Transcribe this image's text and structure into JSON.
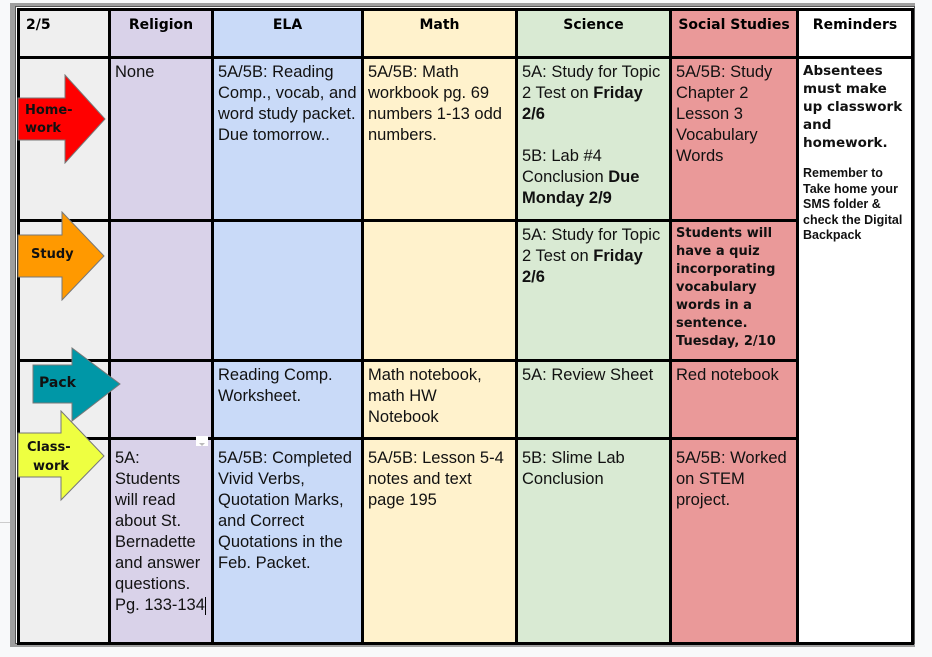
{
  "header": {
    "date": "2/5",
    "religion": "Religion",
    "ela": "ELA",
    "math": "Math",
    "science": "Science",
    "social_studies": "Social Studies",
    "reminders": "Reminders"
  },
  "rows": {
    "homework": {
      "label_line1": "Home-",
      "label_line2": "work",
      "arrow_color": "#ff0000",
      "religion": "None",
      "ela": "5A/5B: Reading Comp., vocab, and word study packet.",
      "ela_due": "Due tomorrow..",
      "math": "5A/5B: Math workbook pg. 69 numbers 1-13 odd numbers.",
      "science_a": "5A: Study for Topic 2 Test on ",
      "science_a_bold": "Friday 2/6",
      "science_b": "5B: Lab #4 Conclusion ",
      "science_b_bold": "Due Monday 2/9",
      "social_studies": "5A/5B: Study Chapter 2 Lesson 3 Vocabulary Words"
    },
    "study": {
      "label": "Study",
      "arrow_color": "#ff9900",
      "science": "5A: Study for Topic 2 Test on ",
      "science_bold": "Friday 2/6",
      "social_studies": "Students will have a quiz incorporating vocabulary words in a sentence. Tuesday, 2/10"
    },
    "pack": {
      "label": "Pack",
      "arrow_color": "#0097a7",
      "ela": "Reading Comp. Worksheet.",
      "math": "Math notebook, math HW Notebook",
      "science": "5A: Review Sheet",
      "social_studies": "Red notebook"
    },
    "classwork": {
      "label_line1": "Class-",
      "label_line2": "work",
      "arrow_color": "#eeff41",
      "religion": "5A: Students will read about St. Bernadette and answer questions. Pg. 133-134",
      "ela": "5A/5B: Completed Vivid Verbs, Quotation Marks, and Correct Quotations in the Feb. Packet.",
      "math": "5A/5B: Lesson 5-4 notes and text page 195",
      "science": "5B: Slime Lab Conclusion",
      "social_studies": "5A/5B: Worked on STEM project."
    }
  },
  "reminders": {
    "main": "Absentees must make up classwork and homework.",
    "note": "Remember to Take home your SMS folder & check the Digital Backpack"
  }
}
